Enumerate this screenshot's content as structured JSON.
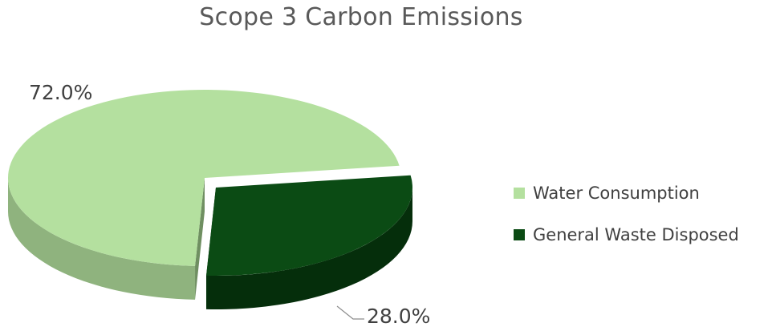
{
  "chart_data": {
    "type": "pie",
    "title": "Scope 3 Carbon Emissions",
    "categories": [
      "Water Consumption",
      "General Waste Disposed"
    ],
    "values": [
      72.0,
      28.0
    ],
    "data_labels": [
      "72.0%",
      "28.0%"
    ],
    "colors": [
      "#b4e09f",
      "#0b4b14"
    ],
    "side_colors": [
      "#8fb37e",
      "#052e0b"
    ],
    "legend_position": "right",
    "style": "3d-exploded"
  }
}
